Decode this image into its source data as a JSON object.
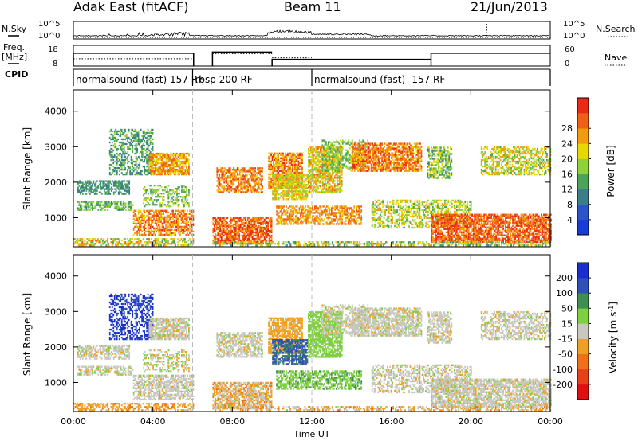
{
  "header": {
    "station": "Adak East (fitACF)",
    "beam": "Beam 11",
    "date": "21/Jun/2013"
  },
  "side_labels": {
    "nsky": "N.Sky",
    "freq": "Freq.",
    "freq_unit": "[MHz]",
    "cpid": "CPID",
    "nsearch": "N.Search",
    "nave": "Nave"
  },
  "nsky_axis": {
    "top": "10^5",
    "bottom": "10^0"
  },
  "nsearch_axis": {
    "top": "10^5",
    "bottom": "10^0"
  },
  "freq_axis": {
    "top": "18",
    "bottom": "8"
  },
  "nave_axis": {
    "top": "60",
    "bottom": "0"
  },
  "cpid_segments": [
    {
      "start": 0,
      "end": 6,
      "label": "normalsound (fast) 157 RF"
    },
    {
      "start": 6,
      "end": 12,
      "label": "rbsp 200 RF"
    },
    {
      "start": 12,
      "end": 24,
      "label": "normalsound (fast) -157 RF"
    }
  ],
  "colors": {
    "power": [
      "#1a3cd6",
      "#2a55c8",
      "#3b7d88",
      "#4aa35a",
      "#8fd13a",
      "#e8d800",
      "#f49a10",
      "#f06014",
      "#ea2a14"
    ],
    "velocity": [
      "#1a2ed0",
      "#3050b8",
      "#3f8f52",
      "#7fd040",
      "#c8c8c0",
      "#f0a020",
      "#f07018",
      "#e84018",
      "#e01010"
    ]
  },
  "chart_data": [
    {
      "type": "heatmap",
      "title": "Power",
      "xlabel": "",
      "ylabel": "Slant Range [km]",
      "x_ticks": [
        "00:00",
        "04:00",
        "08:00",
        "12:00",
        "16:00",
        "20:00",
        "00:00"
      ],
      "y_ticks": [
        "1000",
        "2000",
        "3000",
        "4000"
      ],
      "xlim": [
        0,
        24
      ],
      "ylim": [
        180,
        4600
      ],
      "colorbar_label": "Power [dB]",
      "colorbar_ticks": [
        "4",
        "8",
        "12",
        "16",
        "20",
        "24",
        "28"
      ],
      "grid": false
    },
    {
      "type": "heatmap",
      "title": "Velocity",
      "xlabel": "Time UT",
      "ylabel": "Slant Range [km]",
      "x_ticks": [
        "00:00",
        "04:00",
        "08:00",
        "12:00",
        "16:00",
        "20:00",
        "00:00"
      ],
      "y_ticks": [
        "1000",
        "2000",
        "3000",
        "4000"
      ],
      "xlim": [
        0,
        24
      ],
      "ylim": [
        180,
        4600
      ],
      "colorbar_label": "Velocity [m s^-1]",
      "colorbar_ticks": [
        "200",
        "100",
        "50",
        "15",
        "-15",
        "-50",
        "-100",
        "-200"
      ],
      "grid": false
    }
  ]
}
